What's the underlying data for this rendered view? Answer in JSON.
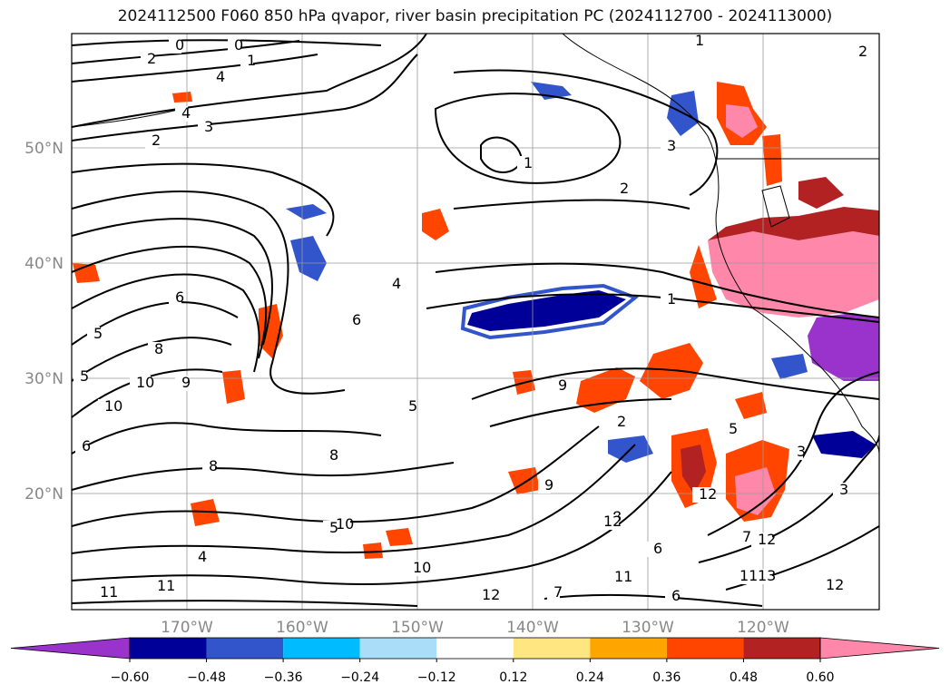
{
  "chart_data": {
    "type": "heatmap",
    "title": "2024112500 F060 850 hPa qvapor, river basin precipitation PC (2024112700 - 2024113000)",
    "map": {
      "lon_range": [
        -180,
        -110
      ],
      "lat_range": [
        10,
        60
      ],
      "grid": true
    },
    "lat_ticks": [
      "50°N",
      "40°N",
      "30°N",
      "20°N"
    ],
    "lon_ticks": [
      "170°W",
      "160°W",
      "150°W",
      "140°W",
      "130°W",
      "120°W"
    ],
    "colorbar": {
      "extend": "both",
      "tick_labels": [
        "−0.60",
        "−0.48",
        "−0.36",
        "−0.24",
        "−0.12",
        "0.12",
        "0.24",
        "0.36",
        "0.48",
        "0.60"
      ],
      "colors": [
        "#9933cc",
        "#000099",
        "#3355cc",
        "#00bbff",
        "#aaddf7",
        "#ffffff",
        "#ffe680",
        "#ffa500",
        "#ff4500",
        "#b22222",
        "#ff88aa",
        "#ff88aa"
      ]
    },
    "contour_labels": [
      "0",
      "0",
      "1",
      "2",
      "4",
      "4",
      "3",
      "2",
      "1",
      "2",
      "1",
      "2",
      "3",
      "1",
      "6",
      "5",
      "5",
      "8",
      "9",
      "10",
      "10",
      "5",
      "4",
      "6",
      "6",
      "8",
      "9",
      "8",
      "8",
      "6",
      "7",
      "6",
      "10",
      "11",
      "12",
      "13",
      "12",
      "12",
      "12",
      "11",
      "12",
      "10",
      "9",
      "7",
      "11",
      "11",
      "5",
      "4",
      "3",
      "3",
      "5",
      "2"
    ]
  },
  "colors": {
    "background": "#ffffff",
    "grid": "#999999",
    "contour": "#000000"
  }
}
